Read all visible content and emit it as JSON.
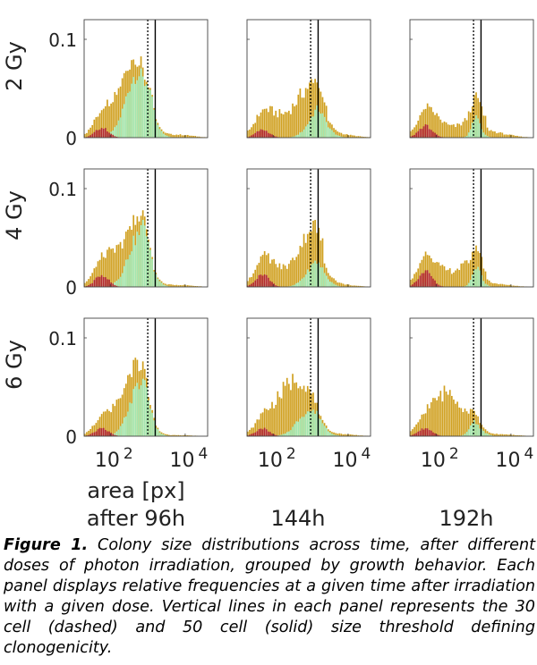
{
  "chart_data": {
    "type": "bar",
    "grid": {
      "rows": 3,
      "cols": 3
    },
    "row_labels": [
      "2 Gy",
      "4 Gy",
      "6 Gy"
    ],
    "col_labels": [
      "after 96h",
      "144h",
      "192h"
    ],
    "xlabel": "area [px]",
    "x_scale": "log",
    "x_range_log10": [
      1.3,
      4.6
    ],
    "x_ticks": [
      {
        "exp": 2,
        "base": "10",
        "sup": "2"
      },
      {
        "exp": 4,
        "base": "10",
        "sup": "4"
      }
    ],
    "ylim": [
      0,
      0.12
    ],
    "y_ticks": [
      {
        "value": 0,
        "label": "0"
      },
      {
        "value": 0.1,
        "label": "0.1"
      }
    ],
    "thresholds": {
      "dashed_30_cell_log10": 3.0,
      "solid_50_cell_log10": 3.2
    },
    "bin_start_log10": 1.3,
    "bin_width_log10": 0.05,
    "series_colors": {
      "red": "#b22a2e",
      "green": "#a2e7b0",
      "gold": "#d0a020"
    },
    "panels": [
      {
        "row": 0,
        "col": 0,
        "ctl": [
          0.01,
          0.028,
          2.3,
          0.065,
          2.72,
          0.3,
          0.016,
          3.05,
          0.08,
          0.003,
          3.8,
          0.4
        ],
        "red": [
          0.01,
          1.78,
          0.18
        ]
      },
      {
        "row": 0,
        "col": 1,
        "ctl": [
          0.022,
          0.038,
          2.85,
          0.022,
          3.18,
          0.26,
          0.007,
          3.2,
          0.12,
          0.003,
          3.8,
          0.4
        ],
        "red": [
          0.008,
          1.72,
          0.18
        ]
      },
      {
        "row": 0,
        "col": 2,
        "ctl": [
          0.02,
          0.02,
          3.05,
          0.007,
          3.12,
          0.15,
          0.015,
          3.05,
          0.1,
          0.003,
          3.7,
          0.4
        ],
        "red": [
          0.012,
          1.72,
          0.18
        ]
      },
      {
        "row": 1,
        "col": 0,
        "ctl": [
          0.012,
          0.025,
          2.35,
          0.05,
          2.75,
          0.28,
          0.022,
          2.95,
          0.1,
          0.002,
          3.8,
          0.4
        ],
        "red": [
          0.012,
          1.78,
          0.18
        ]
      },
      {
        "row": 1,
        "col": 1,
        "ctl": [
          0.021,
          0.04,
          2.95,
          0.02,
          3.12,
          0.26,
          0.006,
          3.2,
          0.12,
          0.002,
          3.8,
          0.4
        ],
        "red": [
          0.013,
          1.72,
          0.18
        ]
      },
      {
        "row": 1,
        "col": 2,
        "ctl": [
          0.02,
          0.022,
          2.9,
          0.008,
          3.12,
          0.15,
          0.012,
          3.08,
          0.1,
          0.002,
          3.7,
          0.4
        ],
        "red": [
          0.016,
          1.72,
          0.18
        ]
      },
      {
        "row": 2,
        "col": 0,
        "ctl": [
          0.008,
          0.03,
          2.45,
          0.048,
          2.75,
          0.26,
          0.018,
          2.95,
          0.1,
          0.001,
          3.8,
          0.4
        ],
        "red": [
          0.008,
          1.78,
          0.18
        ]
      },
      {
        "row": 2,
        "col": 1,
        "ctl": [
          0.012,
          0.045,
          2.5,
          0.025,
          2.95,
          0.3,
          0.004,
          3.2,
          0.12,
          0.002,
          3.8,
          0.4
        ],
        "red": [
          0.008,
          1.72,
          0.18
        ]
      },
      {
        "row": 2,
        "col": 2,
        "ctl": [
          0.012,
          0.04,
          2.4,
          0.008,
          3.1,
          0.18,
          0.008,
          3.0,
          0.1,
          0.002,
          3.7,
          0.4
        ],
        "red": [
          0.008,
          1.72,
          0.18
        ]
      }
    ]
  },
  "caption": {
    "lead": "Figure 1.",
    "body": "Colony size distributions across time, after different doses of photon irradiation, grouped by growth behavior. Each panel displays relative frequencies at a given time after irradiation with a given dose. Vertical lines in each panel represents the 30 cell (dashed) and 50 cell (solid) size threshold defining clonogenicity."
  }
}
